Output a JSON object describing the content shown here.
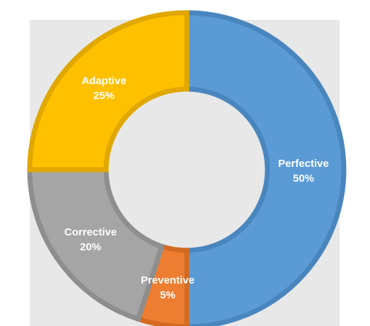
{
  "chart_data": {
    "type": "pie",
    "variant": "donut",
    "title": "",
    "slices": [
      {
        "label": "Perfective",
        "value": 50,
        "value_label": "50%",
        "color": "#5B9BD5",
        "edge_color": "#4A86BE"
      },
      {
        "label": "Preventive",
        "value": 5,
        "value_label": "5%",
        "color": "#ED7D31",
        "edge_color": "#D46A22"
      },
      {
        "label": "Corrective",
        "value": 20,
        "value_label": "20%",
        "color": "#A5A5A5",
        "edge_color": "#8E8E8E"
      },
      {
        "label": "Adaptive",
        "value": 25,
        "value_label": "25%",
        "color": "#FFC000",
        "edge_color": "#E0A800"
      }
    ],
    "start_angle": "12 o'clock",
    "direction": "clockwise",
    "legend": "none",
    "plot_background": "#E8E8E8"
  }
}
